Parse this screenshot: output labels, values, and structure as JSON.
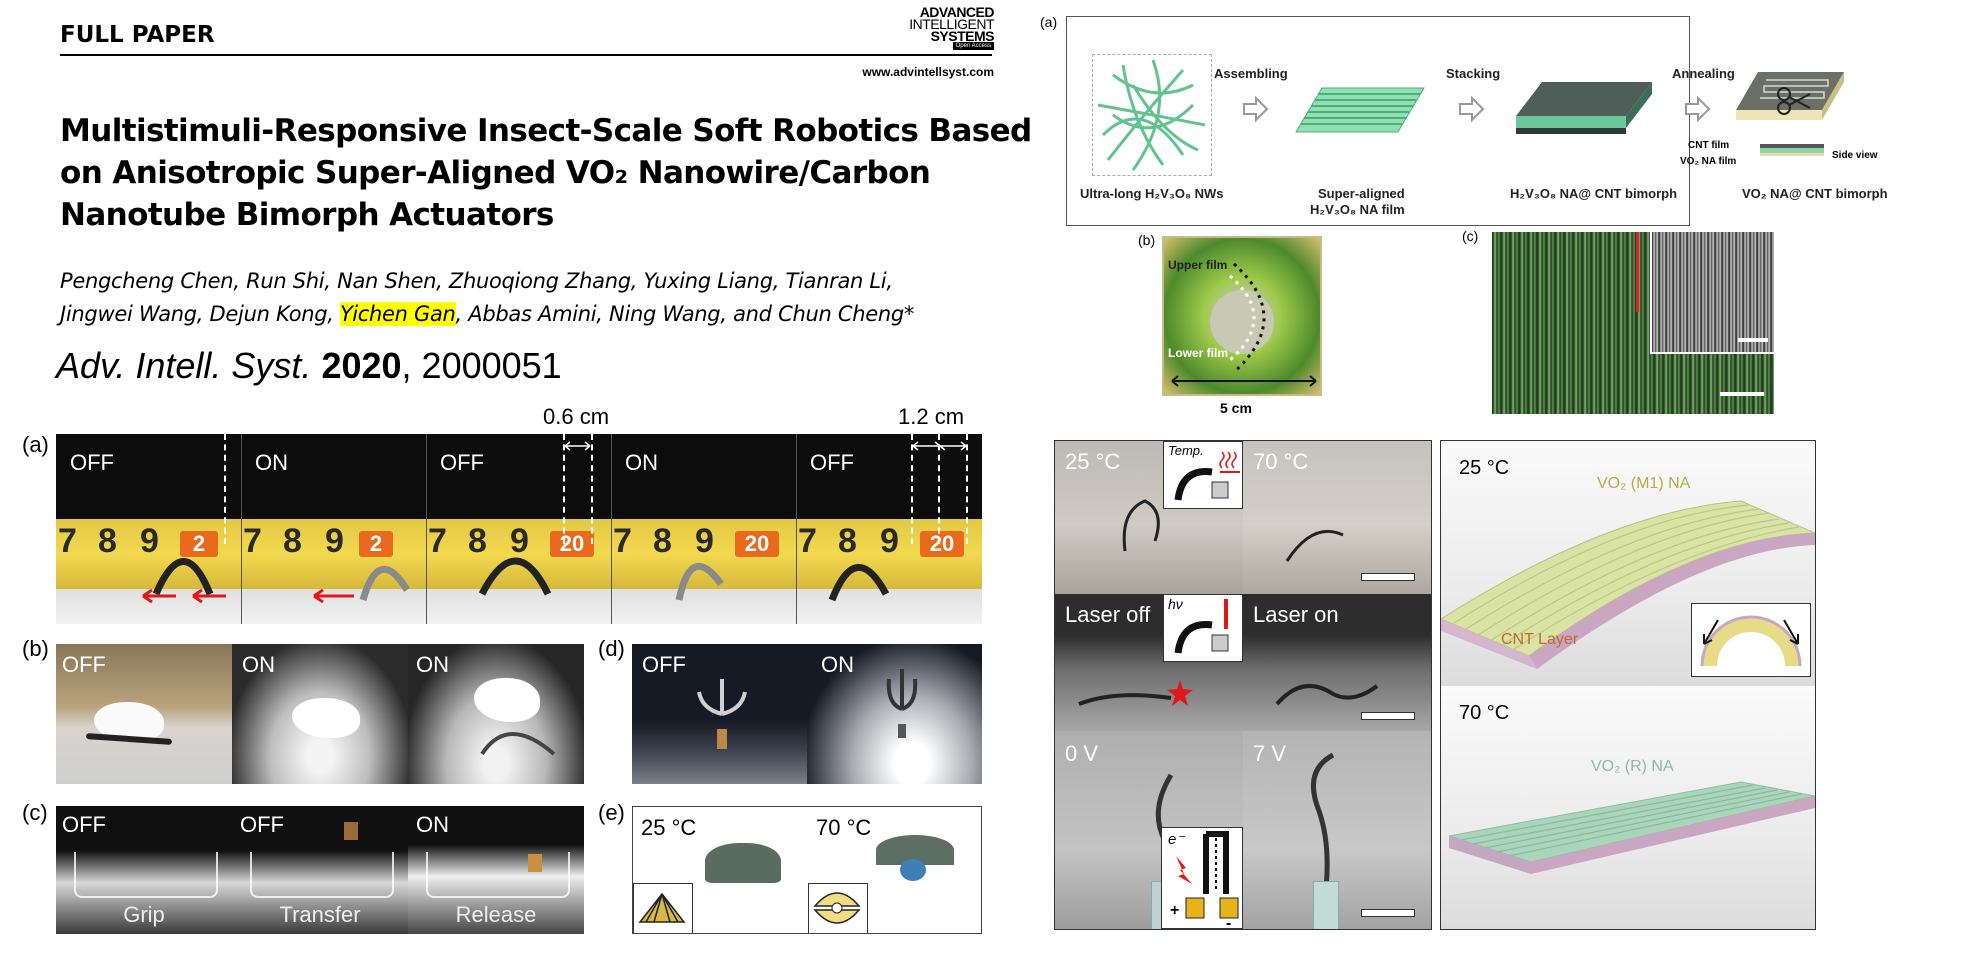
{
  "header": {
    "section": "FULL PAPER",
    "journal_logo_lines": [
      "ADVANCED",
      "INTELLIGENT",
      "SYSTEMS",
      "Open Access"
    ],
    "website": "www.advintellsyst.com"
  },
  "paper": {
    "title_lines": [
      "Multistimuli-Responsive Insect-Scale Soft Robotics Based",
      "on Anisotropic Super-Aligned VO₂ Nanowire/Carbon",
      "Nanotube Bimorph Actuators"
    ],
    "authors_line1": "Pengcheng Chen, Run Shi, Nan Shen, Zhuoqiong Zhang, Yuxing Liang, Tianran Li,",
    "authors_line2_before": "Jingwei Wang, Dejun Kong, ",
    "authors_highlight": "Yichen Gan",
    "authors_line2_after": ", Abbas Amini, Ning Wang, and Chun Cheng*",
    "citation_journal": "Adv. Intell. Syst.",
    "citation_year": "2020",
    "citation_id": ", 2000051"
  },
  "left_figure": {
    "a": {
      "label": "(a)",
      "scale_1": "0.6 cm",
      "scale_2": "1.2 cm",
      "states": [
        "OFF",
        "ON",
        "OFF",
        "ON",
        "OFF"
      ],
      "tape_numbers": [
        [
          "7",
          "8",
          "9",
          "2"
        ],
        [
          "7",
          "8",
          "9",
          "2"
        ],
        [
          "7",
          "8",
          "9",
          "20"
        ],
        [
          "7",
          "8",
          "9",
          "20"
        ],
        [
          "7",
          "8",
          "9",
          "20"
        ]
      ]
    },
    "b": {
      "label": "(b)",
      "states": [
        "OFF",
        "ON",
        "ON"
      ]
    },
    "c": {
      "label": "(c)",
      "states": [
        "OFF",
        "OFF",
        "ON"
      ],
      "captions": [
        "Grip",
        "Transfer",
        "Release"
      ]
    },
    "d": {
      "label": "(d)",
      "states": [
        "OFF",
        "ON"
      ]
    },
    "e": {
      "label": "(e)",
      "states": [
        "25 °C",
        "70 °C"
      ]
    }
  },
  "right_figure": {
    "a": {
      "label": "(a)",
      "steps": [
        "Assembling",
        "Stacking",
        "Annealing"
      ],
      "captions": [
        "Ultra-long H₂V₃O₈ NWs",
        "Super-aligned",
        "H₂V₃O₈ NA film",
        "H₂V₃O₈ NA@ CNT bimorph",
        "VO₂ NA@ CNT bimorph"
      ],
      "side_labels": [
        "CNT film",
        "VO₂ NA film",
        "Side view"
      ]
    },
    "b": {
      "label": "(b)",
      "upper": "Upper film",
      "lower": "Lower film",
      "scale": "5 cm"
    },
    "c": {
      "label": "(c)"
    },
    "bottom_left": {
      "cells": [
        "25 °C",
        "70 °C",
        "Laser off",
        "Laser on",
        "0 V",
        "7 V"
      ],
      "insets": [
        "Temp.",
        "hν",
        "e⁻",
        "+",
        "-"
      ]
    },
    "bottom_right": {
      "top_temp": "25 °C",
      "top_material": "VO₂ (M1) NA",
      "cnt_layer": "CNT Layer",
      "bottom_temp": "70 °C",
      "bottom_material": "VO₂ (R) NA"
    }
  },
  "colors": {
    "highlight": "#ffff00",
    "tape": "#f1d94f",
    "tape_tag": "#e96a1c",
    "nanowire_green": "#63c38f",
    "cnt_pink": "#c9a7c3",
    "vo2_m1": "#d8e2a2",
    "vo2_r": "#a9d3b8",
    "cnt_label": "#c36a2a"
  }
}
